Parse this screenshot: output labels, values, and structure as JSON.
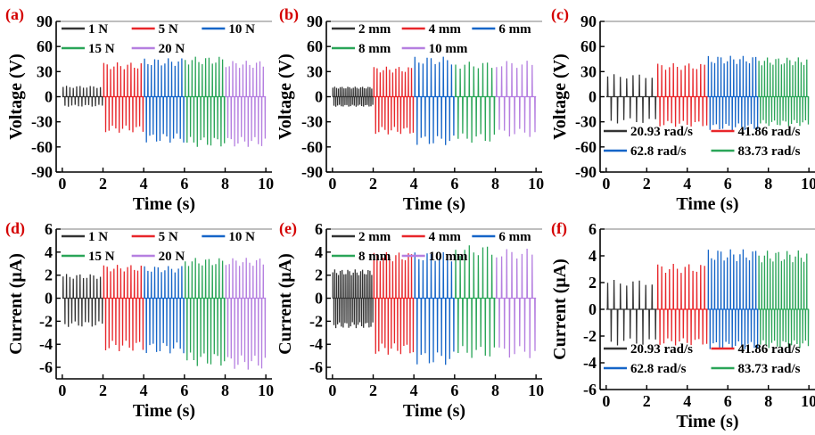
{
  "colors": {
    "black": "#333333",
    "red": "#e8262a",
    "blue": "#1565c8",
    "green": "#2aa558",
    "purple": "#b57fe0",
    "panel_tag": "#d40000"
  },
  "chart_data": [
    {
      "id": "a",
      "panel_tag": "(a)",
      "type": "line",
      "xlabel": "Time (s)",
      "ylabel": "Voltage (V)",
      "xlim": [
        -0.3,
        10.3
      ],
      "ylim": [
        -90,
        90
      ],
      "xticks": [
        "0",
        "2",
        "4",
        "6",
        "8",
        "10"
      ],
      "yticks": [
        "90",
        "60",
        "30",
        "0",
        "-30",
        "-60",
        "-90"
      ],
      "ytick_values": [
        90,
        60,
        30,
        0,
        -30,
        -60,
        -90
      ],
      "grid": false,
      "legend_position": "top",
      "legend_columns": 3,
      "series": [
        {
          "name": "1 N",
          "color": "black",
          "x_range": [
            0,
            2
          ],
          "peak_max": 13,
          "peak_min": -12,
          "cycles": 12
        },
        {
          "name": "5 N",
          "color": "red",
          "x_range": [
            2,
            4
          ],
          "peak_max": 41,
          "peak_min": -43,
          "cycles": 12
        },
        {
          "name": "10 N",
          "color": "blue",
          "x_range": [
            4,
            6
          ],
          "peak_max": 46,
          "peak_min": -55,
          "cycles": 12
        },
        {
          "name": "15 N",
          "color": "green",
          "x_range": [
            6,
            8
          ],
          "peak_max": 48,
          "peak_min": -60,
          "cycles": 12
        },
        {
          "name": "20 N",
          "color": "purple",
          "x_range": [
            8,
            10
          ],
          "peak_max": 43,
          "peak_min": -60,
          "cycles": 12
        }
      ]
    },
    {
      "id": "b",
      "panel_tag": "(b)",
      "type": "line",
      "xlabel": "Time (s)",
      "ylabel": "Voltage (V)",
      "xlim": [
        -0.3,
        10.3
      ],
      "ylim": [
        -90,
        90
      ],
      "xticks": [
        "0",
        "2",
        "4",
        "6",
        "8",
        "10"
      ],
      "yticks": [
        "90",
        "60",
        "30",
        "0",
        "-30",
        "-60",
        "-90"
      ],
      "ytick_values": [
        90,
        60,
        30,
        0,
        -30,
        -60,
        -90
      ],
      "grid": false,
      "legend_position": "top",
      "legend_columns": 3,
      "series": [
        {
          "name": "2 mm",
          "color": "black",
          "x_range": [
            0,
            2
          ],
          "peak_max": 12,
          "peak_min": -12,
          "cycles": 22
        },
        {
          "name": "4 mm",
          "color": "red",
          "x_range": [
            2,
            4
          ],
          "peak_max": 36,
          "peak_min": -45,
          "cycles": 13
        },
        {
          "name": "6 mm",
          "color": "blue",
          "x_range": [
            4,
            6
          ],
          "peak_max": 48,
          "peak_min": -58,
          "cycles": 10
        },
        {
          "name": "8 mm",
          "color": "green",
          "x_range": [
            6,
            8
          ],
          "peak_max": 42,
          "peak_min": -55,
          "cycles": 9
        },
        {
          "name": "10 mm",
          "color": "purple",
          "x_range": [
            8,
            10
          ],
          "peak_max": 43,
          "peak_min": -48,
          "cycles": 8
        }
      ]
    },
    {
      "id": "c",
      "panel_tag": "(c)",
      "type": "line",
      "xlabel": "Time (s)",
      "ylabel": "Voltage (V)",
      "xlim": [
        -0.3,
        10.3
      ],
      "ylim": [
        -90,
        90
      ],
      "xticks": [
        "0",
        "2",
        "4",
        "6",
        "8",
        "10"
      ],
      "yticks": [
        "90",
        "60",
        "30",
        "0",
        "-30",
        "-60",
        "-90"
      ],
      "ytick_values": [
        90,
        60,
        30,
        0,
        -30,
        -60,
        -90
      ],
      "grid": false,
      "legend_position": "bottom",
      "legend_columns": 2,
      "series": [
        {
          "name": "20.93 rad/s",
          "color": "black",
          "x_range": [
            0,
            2.5
          ],
          "peak_max": 27,
          "peak_min": -32,
          "cycles": 8
        },
        {
          "name": "41.86 rad/s",
          "color": "red",
          "x_range": [
            2.5,
            5
          ],
          "peak_max": 40,
          "peak_min": -36,
          "cycles": 13
        },
        {
          "name": "62.8 rad/s",
          "color": "blue",
          "x_range": [
            5,
            7.5
          ],
          "peak_max": 49,
          "peak_min": -40,
          "cycles": 16
        },
        {
          "name": "83.73 rad/s",
          "color": "green",
          "x_range": [
            7.5,
            10
          ],
          "peak_max": 47,
          "peak_min": -35,
          "cycles": 18
        }
      ]
    },
    {
      "id": "d",
      "panel_tag": "(d)",
      "type": "line",
      "xlabel": "Time (s)",
      "ylabel": "Current (μA)",
      "xlim": [
        -0.3,
        10.3
      ],
      "ylim": [
        -7,
        6
      ],
      "xticks": [
        "0",
        "2",
        "4",
        "6",
        "8",
        "10"
      ],
      "yticks": [
        "6",
        "4",
        "2",
        "0",
        "-2",
        "-4",
        "-6"
      ],
      "ytick_values": [
        6,
        4,
        2,
        0,
        -2,
        -4,
        -6
      ],
      "grid": false,
      "legend_position": "top",
      "legend_columns": 3,
      "series": [
        {
          "name": "1 N",
          "color": "black",
          "x_range": [
            0,
            2
          ],
          "peak_max": 2.1,
          "peak_min": -2.5,
          "cycles": 12
        },
        {
          "name": "5 N",
          "color": "red",
          "x_range": [
            2,
            4
          ],
          "peak_max": 2.9,
          "peak_min": -4.6,
          "cycles": 12
        },
        {
          "name": "10 N",
          "color": "blue",
          "x_range": [
            4,
            6
          ],
          "peak_max": 2.8,
          "peak_min": -4.8,
          "cycles": 12
        },
        {
          "name": "15 N",
          "color": "green",
          "x_range": [
            6,
            8
          ],
          "peak_max": 3.5,
          "peak_min": -5.9,
          "cycles": 12
        },
        {
          "name": "20 N",
          "color": "purple",
          "x_range": [
            8,
            10
          ],
          "peak_max": 3.5,
          "peak_min": -6.2,
          "cycles": 12
        }
      ]
    },
    {
      "id": "e",
      "panel_tag": "(e)",
      "type": "line",
      "xlabel": "Time (s)",
      "ylabel": "Current (μA)",
      "xlim": [
        -0.3,
        10.3
      ],
      "ylim": [
        -7,
        6
      ],
      "xticks": [
        "0",
        "2",
        "4",
        "6",
        "8",
        "10"
      ],
      "yticks": [
        "6",
        "4",
        "2",
        "0",
        "-2",
        "-4",
        "-6"
      ],
      "ytick_values": [
        6,
        4,
        2,
        0,
        -2,
        -4,
        -6
      ],
      "grid": false,
      "legend_position": "top",
      "legend_columns": 3,
      "series": [
        {
          "name": "2 mm",
          "color": "black",
          "x_range": [
            0,
            2
          ],
          "peak_max": 2.5,
          "peak_min": -2.6,
          "cycles": 22
        },
        {
          "name": "4 mm",
          "color": "red",
          "x_range": [
            2,
            4
          ],
          "peak_max": 4.0,
          "peak_min": -4.9,
          "cycles": 13
        },
        {
          "name": "6 mm",
          "color": "blue",
          "x_range": [
            4,
            6
          ],
          "peak_max": 4.0,
          "peak_min": -5.8,
          "cycles": 10
        },
        {
          "name": "8 mm",
          "color": "green",
          "x_range": [
            6,
            8
          ],
          "peak_max": 4.6,
          "peak_min": -5.2,
          "cycles": 9
        },
        {
          "name": "10 mm",
          "color": "purple",
          "x_range": [
            8,
            10
          ],
          "peak_max": 4.3,
          "peak_min": -5.2,
          "cycles": 8
        }
      ]
    },
    {
      "id": "f",
      "panel_tag": "(f)",
      "type": "line",
      "xlabel": "Time (s)",
      "ylabel": "Current (μA)",
      "xlim": [
        -0.3,
        10.3
      ],
      "ylim": [
        -6,
        6
      ],
      "xticks": [
        "0",
        "2",
        "4",
        "6",
        "8",
        "10"
      ],
      "yticks": [
        "6",
        "4",
        "2",
        "0",
        "-2",
        "-4",
        "-6"
      ],
      "ytick_values": [
        6,
        4,
        2,
        0,
        -2,
        -4,
        -6
      ],
      "grid": false,
      "legend_position": "bottom",
      "legend_columns": 2,
      "series": [
        {
          "name": "20.93 rad/s",
          "color": "black",
          "x_range": [
            0,
            2.5
          ],
          "peak_max": 2.2,
          "peak_min": -2.7,
          "cycles": 8
        },
        {
          "name": "41.86 rad/s",
          "color": "red",
          "x_range": [
            2.5,
            5
          ],
          "peak_max": 3.4,
          "peak_min": -2.7,
          "cycles": 13
        },
        {
          "name": "62.8 rad/s",
          "color": "blue",
          "x_range": [
            5,
            7.5
          ],
          "peak_max": 4.5,
          "peak_min": -3.0,
          "cycles": 16
        },
        {
          "name": "83.73 rad/s",
          "color": "green",
          "x_range": [
            7.5,
            10
          ],
          "peak_max": 4.4,
          "peak_min": -2.9,
          "cycles": 18
        }
      ]
    }
  ]
}
